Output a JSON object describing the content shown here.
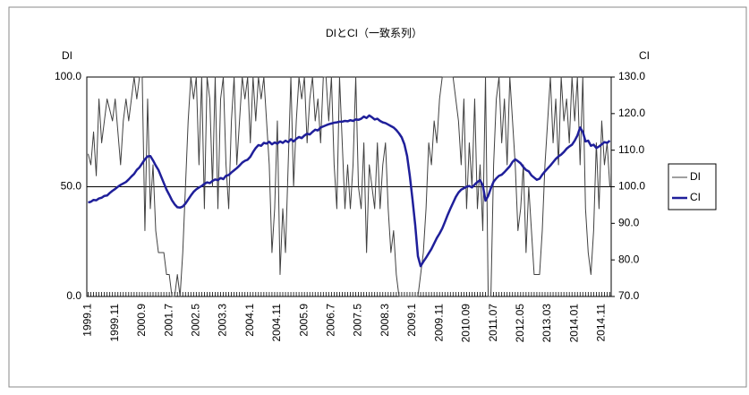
{
  "chart_data": {
    "type": "line",
    "title": "DIとCI（一致系列）",
    "y_label": "DI",
    "y2_label": "CI",
    "categories": [
      "1999.1",
      null,
      null,
      null,
      null,
      null,
      null,
      null,
      null,
      null,
      "1999.11",
      null,
      null,
      null,
      null,
      null,
      null,
      null,
      null,
      null,
      "2000.9",
      null,
      null,
      null,
      null,
      null,
      null,
      null,
      null,
      null,
      "2001.7",
      null,
      null,
      null,
      null,
      null,
      null,
      null,
      null,
      null,
      "2002.5",
      null,
      null,
      null,
      null,
      null,
      null,
      null,
      null,
      null,
      "2003.3",
      null,
      null,
      null,
      null,
      null,
      null,
      null,
      null,
      null,
      "2004.1",
      null,
      null,
      null,
      null,
      null,
      null,
      null,
      null,
      null,
      "2004.11",
      null,
      null,
      null,
      null,
      null,
      null,
      null,
      null,
      null,
      "2005.9",
      null,
      null,
      null,
      null,
      null,
      null,
      null,
      null,
      null,
      "2006.7",
      null,
      null,
      null,
      null,
      null,
      null,
      null,
      null,
      null,
      "2007.5",
      null,
      null,
      null,
      null,
      null,
      null,
      null,
      null,
      null,
      "2008.3",
      null,
      null,
      null,
      null,
      null,
      null,
      null,
      null,
      null,
      "2009.1",
      null,
      null,
      null,
      null,
      null,
      null,
      null,
      null,
      null,
      "2009.11",
      null,
      null,
      null,
      null,
      null,
      null,
      null,
      null,
      null,
      "2010.09",
      null,
      null,
      null,
      null,
      null,
      null,
      null,
      null,
      null,
      "2011.07",
      null,
      null,
      null,
      null,
      null,
      null,
      null,
      null,
      null,
      "2012.05",
      null,
      null,
      null,
      null,
      null,
      null,
      null,
      null,
      null,
      "2013.03",
      null,
      null,
      null,
      null,
      null,
      null,
      null,
      null,
      null,
      "2014.01",
      null,
      null,
      null,
      null,
      null,
      null,
      null,
      null,
      null,
      "2014.11",
      null,
      null,
      null
    ],
    "series": [
      {
        "name": "DI",
        "color": "#404040",
        "values": [
          65,
          60,
          75,
          55,
          90,
          70,
          80,
          90,
          85,
          80,
          90,
          75,
          60,
          80,
          90,
          80,
          90,
          100,
          90,
          100,
          100,
          30,
          90,
          40,
          60,
          30,
          20,
          20,
          20,
          10,
          10,
          0,
          0,
          10,
          0,
          20,
          50,
          80,
          100,
          90,
          100,
          60,
          100,
          40,
          100,
          90,
          50,
          100,
          40,
          90,
          100,
          60,
          40,
          80,
          100,
          60,
          80,
          100,
          90,
          100,
          70,
          100,
          80,
          100,
          90,
          100,
          80,
          60,
          20,
          40,
          80,
          10,
          40,
          20,
          60,
          100,
          50,
          80,
          100,
          90,
          100,
          70,
          90,
          100,
          80,
          90,
          70,
          100,
          100,
          80,
          100,
          60,
          40,
          100,
          70,
          40,
          60,
          40,
          60,
          100,
          50,
          40,
          70,
          20,
          60,
          50,
          40,
          70,
          40,
          60,
          70,
          40,
          20,
          30,
          10,
          0,
          0,
          0,
          0,
          0,
          0,
          0,
          0,
          10,
          20,
          40,
          70,
          60,
          80,
          70,
          90,
          100,
          100,
          100,
          100,
          100,
          90,
          80,
          60,
          90,
          40,
          70,
          50,
          90,
          40,
          60,
          30,
          100,
          0,
          0,
          60,
          90,
          100,
          70,
          90,
          60,
          100,
          80,
          60,
          30,
          40,
          60,
          20,
          50,
          30,
          10,
          10,
          10,
          30,
          60,
          80,
          100,
          70,
          90,
          60,
          100,
          80,
          90,
          70,
          100,
          80,
          100,
          60,
          100,
          40,
          20,
          10,
          30,
          70,
          40,
          80,
          60,
          70,
          50
        ]
      },
      {
        "name": "CI",
        "color": "#1f1f9a",
        "axis": "y2",
        "values": [
          95.7,
          95.9,
          96.4,
          96.3,
          96.8,
          97.0,
          97.5,
          97.6,
          98.3,
          98.9,
          99.4,
          100.0,
          100.5,
          100.9,
          101.3,
          102.0,
          102.8,
          103.5,
          104.6,
          105.3,
          106.4,
          107.5,
          108.3,
          108.4,
          107.2,
          105.8,
          104.6,
          102.8,
          101.0,
          99.2,
          97.8,
          96.3,
          95.2,
          94.4,
          94.3,
          94.6,
          95.4,
          96.5,
          97.6,
          98.6,
          99.3,
          99.8,
          100.2,
          100.8,
          101.2,
          101.0,
          101.6,
          102.0,
          101.8,
          102.4,
          102.1,
          103.0,
          103.2,
          103.9,
          104.5,
          105.1,
          105.8,
          106.6,
          107.1,
          107.4,
          108.2,
          109.5,
          110.6,
          111.4,
          111.2,
          112.0,
          111.8,
          112.3,
          111.6,
          112.1,
          111.8,
          112.4,
          112.0,
          112.6,
          112.2,
          113.0,
          112.4,
          113.1,
          113.6,
          113.3,
          114.0,
          114.5,
          114.3,
          115.0,
          115.6,
          115.4,
          116.2,
          116.5,
          116.8,
          117.1,
          117.3,
          117.5,
          117.6,
          117.8,
          117.8,
          118.0,
          117.9,
          118.2,
          118.0,
          118.4,
          118.3,
          118.6,
          119.2,
          118.8,
          119.5,
          119.0,
          118.4,
          118.6,
          118.0,
          117.6,
          117.4,
          117.0,
          116.6,
          116.2,
          115.5,
          114.6,
          113.5,
          111.6,
          108.4,
          103.0,
          96.5,
          89.5,
          81.0,
          78.3,
          79.5,
          80.6,
          81.8,
          83.0,
          84.5,
          86.0,
          87.2,
          88.6,
          90.4,
          92.3,
          94.0,
          95.6,
          97.2,
          98.4,
          99.2,
          99.6,
          100.0,
          100.2,
          99.8,
          100.6,
          101.3,
          101.8,
          100.4,
          96.2,
          97.5,
          99.6,
          101.4,
          102.3,
          103.0,
          103.3,
          104.0,
          104.8,
          105.6,
          106.8,
          107.5,
          107.0,
          106.4,
          105.4,
          104.6,
          104.2,
          103.1,
          102.5,
          101.9,
          102.2,
          103.3,
          104.2,
          105.0,
          105.8,
          106.7,
          107.6,
          108.3,
          108.8,
          109.5,
          110.4,
          111.0,
          111.5,
          112.6,
          114.0,
          116.2,
          115.0,
          112.4,
          112.6,
          111.2,
          111.5,
          110.6,
          111.0,
          111.6,
          112.2,
          112.0,
          112.6
        ]
      }
    ],
    "ylim": [
      0,
      100
    ],
    "yticks": [
      {
        "value": 0,
        "label": "0.0"
      },
      {
        "value": 50,
        "label": "50.0"
      },
      {
        "value": 100,
        "label": "100.0"
      }
    ],
    "y2lim": [
      70,
      130
    ],
    "y2ticks": [
      {
        "value": 70,
        "label": "70.0"
      },
      {
        "value": 80,
        "label": "80.0"
      },
      {
        "value": 90,
        "label": "90.0"
      },
      {
        "value": 100,
        "label": "100.0"
      },
      {
        "value": 110,
        "label": "110.0"
      },
      {
        "value": 120,
        "label": "120.0"
      },
      {
        "value": 130,
        "label": "130.0"
      }
    ],
    "grid": true,
    "legend": "right"
  }
}
